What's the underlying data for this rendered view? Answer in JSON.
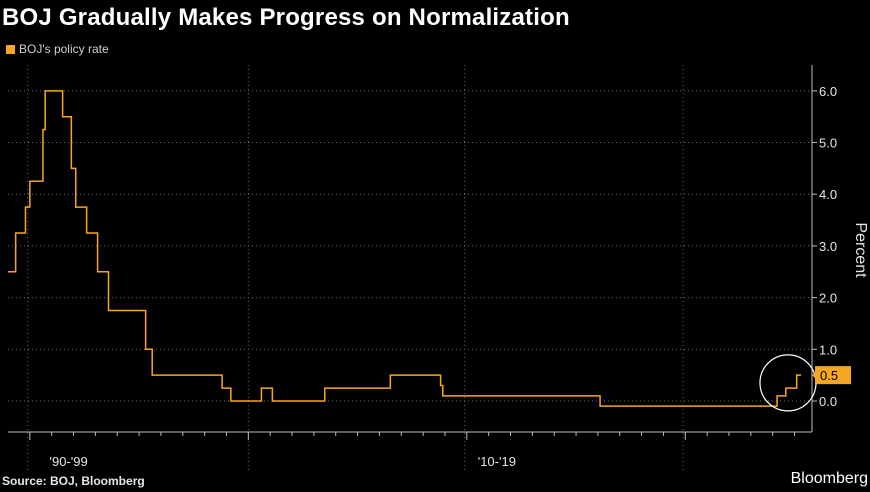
{
  "title": "BOJ Gradually Makes Progress on Normalization",
  "source": "Source: BOJ, Bloomberg",
  "brand": "Bloomberg",
  "colors": {
    "series": "#f6a623",
    "grid": "#6b6b6b",
    "background": "#000000"
  },
  "chart_data": {
    "type": "line",
    "series": [
      {
        "name": "BOJ's policy rate",
        "points": [
          [
            1989.0,
            2.5
          ],
          [
            1989.35,
            3.25
          ],
          [
            1989.8,
            3.75
          ],
          [
            1990.0,
            4.25
          ],
          [
            1990.6,
            5.25
          ],
          [
            1990.7,
            6.0
          ],
          [
            1991.5,
            5.5
          ],
          [
            1991.9,
            4.5
          ],
          [
            1992.1,
            3.75
          ],
          [
            1992.6,
            3.25
          ],
          [
            1993.1,
            2.5
          ],
          [
            1993.6,
            1.75
          ],
          [
            1995.3,
            1.0
          ],
          [
            1995.6,
            0.5
          ],
          [
            1998.8,
            0.25
          ],
          [
            1999.2,
            0.0
          ],
          [
            2000.6,
            0.25
          ],
          [
            2001.1,
            0.0
          ],
          [
            2001.5,
            0.0
          ],
          [
            2003.5,
            0.25
          ],
          [
            2006.5,
            0.5
          ],
          [
            2008.8,
            0.3
          ],
          [
            2008.9,
            0.1
          ],
          [
            2010.0,
            0.1
          ],
          [
            2016.1,
            -0.1
          ],
          [
            2024.2,
            0.1
          ],
          [
            2024.6,
            0.25
          ],
          [
            2025.1,
            0.5
          ],
          [
            2025.3,
            0.5
          ]
        ]
      }
    ],
    "xlim": [
      1989.0,
      2025.8
    ],
    "ylim": [
      -0.6,
      6.5
    ],
    "ylabel": "Percent",
    "yticks": [
      "0.0",
      "1.0",
      "2.0",
      "3.0",
      "4.0",
      "5.0",
      "6.0"
    ],
    "xtick_labels": [
      {
        "label": "'90-'99",
        "x": 1990.9
      },
      {
        "label": "'10-'19",
        "x": 2010.5
      }
    ],
    "grid": true,
    "last_value_label": "0.5",
    "highlight_circle": {
      "x": 2024.7,
      "y": 0.35
    }
  }
}
